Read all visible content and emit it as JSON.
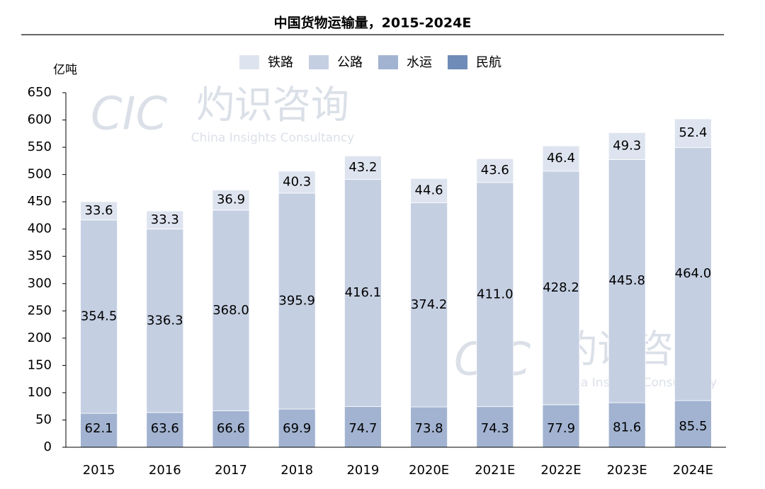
{
  "chart_data": {
    "type": "stacked-bar",
    "title": "中国货物运输量，2015-2024E",
    "y_label": "亿吨",
    "watermark": {
      "logo": "CIC",
      "name": "灼识咨询",
      "english": "China Insights Consultancy"
    },
    "categories": [
      "2015",
      "2016",
      "2017",
      "2018",
      "2019",
      "2020E",
      "2021E",
      "2022E",
      "2023E",
      "2024E"
    ],
    "series": [
      {
        "name": "民航",
        "color": "#6f8cb8",
        "values": [
          0.1,
          0.1,
          0.1,
          0.1,
          0.1,
          0.1,
          0.1,
          0.1,
          0.1,
          0.1
        ]
      },
      {
        "name": "水运",
        "color": "#a2b3d1",
        "values": [
          62.1,
          63.6,
          66.6,
          69.9,
          74.7,
          73.8,
          74.3,
          77.9,
          81.6,
          85.5
        ]
      },
      {
        "name": "公路",
        "color": "#c5cfe2",
        "values": [
          354.5,
          336.3,
          368.0,
          395.9,
          416.1,
          374.2,
          411.0,
          428.2,
          445.8,
          464.0
        ],
        "value_labels": [
          "354.5",
          "336.3",
          "368.0",
          "395.9",
          "416.1",
          "374.2",
          "411.0",
          "428.2",
          "445.8",
          "464.0"
        ]
      },
      {
        "name": "铁路",
        "color": "#dee4ef",
        "values": [
          33.6,
          33.3,
          36.9,
          40.3,
          43.2,
          44.6,
          43.6,
          46.4,
          49.3,
          52.4
        ]
      }
    ],
    "legend_order": [
      3,
      2,
      1,
      0
    ],
    "ylim": [
      0,
      650
    ],
    "yticks": [
      0,
      50,
      100,
      150,
      200,
      250,
      300,
      350,
      400,
      450,
      500,
      550,
      600,
      650
    ],
    "grid": false
  }
}
